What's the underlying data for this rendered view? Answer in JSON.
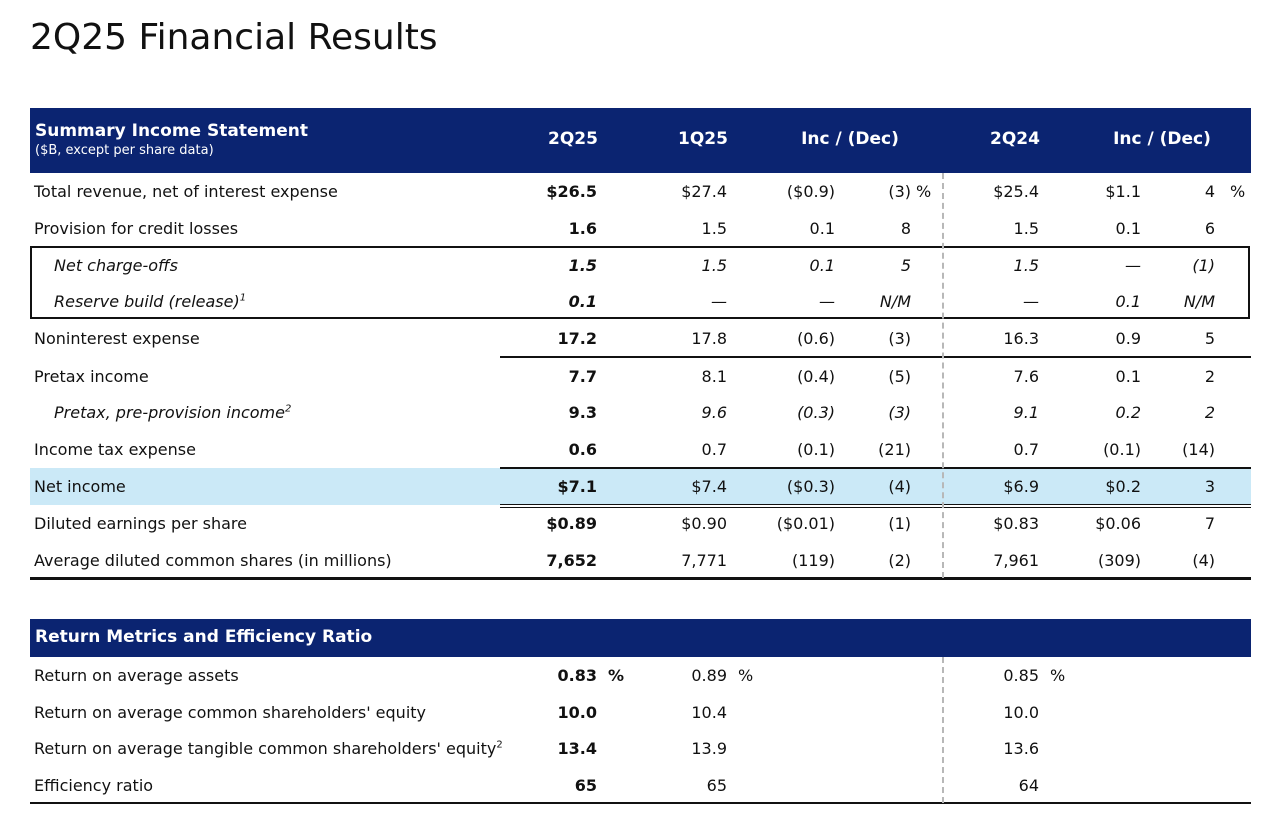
{
  "title": "2Q25 Financial Results",
  "income": {
    "title": "Summary Income Statement",
    "subtitle": "($B, except per share data)",
    "col_headers": [
      "2Q25",
      "1Q25",
      "Inc / (Dec)",
      "2Q24",
      "Inc / (Dec)"
    ],
    "rows": [
      {
        "label": "Total revenue, net of interest expense",
        "c1": "$26.5",
        "c2": "$27.4",
        "c3": "($0.9)",
        "c4": "(3)",
        "c5": "$25.4",
        "c6": "$1.1",
        "c7": "4",
        "pct1": "%",
        "pct2": "%"
      },
      {
        "label": "Provision for credit losses",
        "c1": "1.6",
        "c2": "1.5",
        "c3": "0.1",
        "c4": "8",
        "c5": "1.5",
        "c6": "0.1",
        "c7": "6"
      },
      {
        "label": "Net charge-offs",
        "c1": "1.5",
        "c2": "1.5",
        "c3": "0.1",
        "c4": "5",
        "c5": "1.5",
        "c6": "—",
        "c7": "(1)"
      },
      {
        "label": "Reserve build (release)",
        "sup": "1",
        "c1": "0.1",
        "c2": "—",
        "c3": "—",
        "c4": "N/M",
        "c5": "—",
        "c6": "0.1",
        "c7": "N/M"
      },
      {
        "label": "Noninterest expense",
        "c1": "17.2",
        "c2": "17.8",
        "c3": "(0.6)",
        "c4": "(3)",
        "c5": "16.3",
        "c6": "0.9",
        "c7": "5"
      },
      {
        "label": "Pretax income",
        "c1": "7.7",
        "c2": "8.1",
        "c3": "(0.4)",
        "c4": "(5)",
        "c5": "7.6",
        "c6": "0.1",
        "c7": "2"
      },
      {
        "label": "Pretax, pre-provision income",
        "sup": "2",
        "c1": "9.3",
        "c2": "9.6",
        "c3": "(0.3)",
        "c4": "(3)",
        "c5": "9.1",
        "c6": "0.2",
        "c7": "2"
      },
      {
        "label": "Income tax expense",
        "c1": "0.6",
        "c2": "0.7",
        "c3": "(0.1)",
        "c4": "(21)",
        "c5": "0.7",
        "c6": "(0.1)",
        "c7": "(14)"
      },
      {
        "label": "Net income",
        "c1": "$7.1",
        "c2": "$7.4",
        "c3": "($0.3)",
        "c4": "(4)",
        "c5": "$6.9",
        "c6": "$0.2",
        "c7": "3"
      },
      {
        "label": "Diluted earnings per share",
        "c1": "$0.89",
        "c2": "$0.90",
        "c3": "($0.01)",
        "c4": "(1)",
        "c5": "$0.83",
        "c6": "$0.06",
        "c7": "7"
      },
      {
        "label": "Average diluted common shares (in millions)",
        "c1": "7,652",
        "c2": "7,771",
        "c3": "(119)",
        "c4": "(2)",
        "c5": "7,961",
        "c6": "(309)",
        "c7": "(4)"
      }
    ]
  },
  "returns": {
    "title": "Return Metrics and Efficiency Ratio",
    "rows": [
      {
        "label": "Return on average assets",
        "c1": "0.83",
        "c2": "0.89",
        "c5": "0.85",
        "pct": "%"
      },
      {
        "label": "Return on average common shareholders' equity",
        "c1": "10.0",
        "c2": "10.4",
        "c5": "10.0"
      },
      {
        "label": "Return on average tangible common shareholders' equity",
        "sup": "2",
        "c1": "13.4",
        "c2": "13.9",
        "c5": "13.6"
      },
      {
        "label": "Efficiency ratio",
        "c1": "65",
        "c2": "65",
        "c5": "64"
      }
    ]
  },
  "colors": {
    "header_bg": "#0b2471",
    "highlight_bg": "#cbe9f7"
  }
}
